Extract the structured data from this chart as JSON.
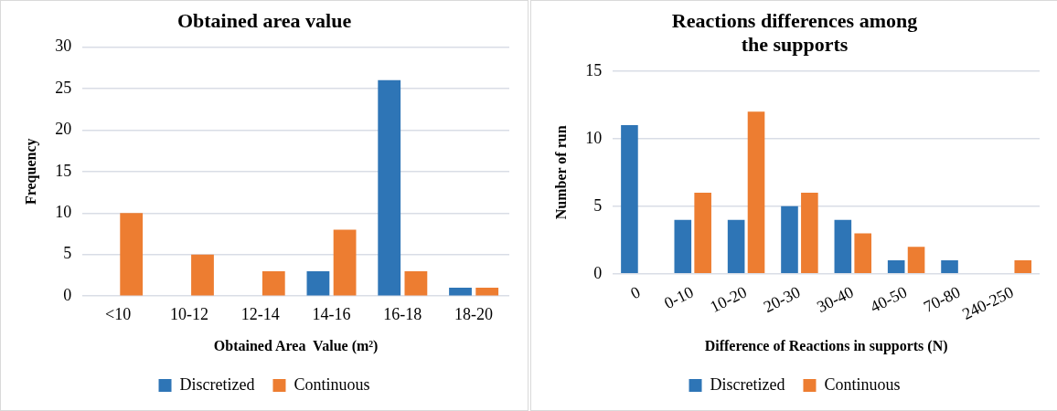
{
  "chart_data": [
    {
      "type": "bar",
      "title": "Obtained area value",
      "xlabel": "Obtained Area  Value (m²)",
      "ylabel": "Frequency",
      "categories": [
        "<10",
        "10-12",
        "12-14",
        "14-16",
        "16-18",
        "18-20"
      ],
      "series": [
        {
          "name": "Discretized",
          "color": "#2e75b6",
          "values": [
            0,
            0,
            0,
            3,
            26,
            1
          ]
        },
        {
          "name": "Continuous",
          "color": "#ed7d31",
          "values": [
            10,
            5,
            3,
            8,
            3,
            1
          ]
        }
      ],
      "ylim": [
        0,
        30
      ],
      "yticks": [
        0,
        5,
        10,
        15,
        20,
        25,
        30
      ],
      "grid": "y",
      "legend": "bottom"
    },
    {
      "type": "bar",
      "title": "Reactions differences among the supports",
      "xlabel": "Difference of Reactions in supports (N)",
      "ylabel": "Number of run",
      "categories": [
        "0",
        "0-10",
        "10-20",
        "20-30",
        "30-40",
        "40-50",
        "70-80",
        "240-250"
      ],
      "series": [
        {
          "name": "Discretized",
          "color": "#2e75b6",
          "values": [
            11,
            4,
            4,
            5,
            4,
            1,
            1,
            0
          ]
        },
        {
          "name": "Continuous",
          "color": "#ed7d31",
          "values": [
            0,
            6,
            12,
            6,
            3,
            2,
            0,
            1
          ]
        }
      ],
      "ylim": [
        0,
        15
      ],
      "yticks": [
        0,
        5,
        10,
        15
      ],
      "grid": "y",
      "legend": "bottom"
    }
  ]
}
